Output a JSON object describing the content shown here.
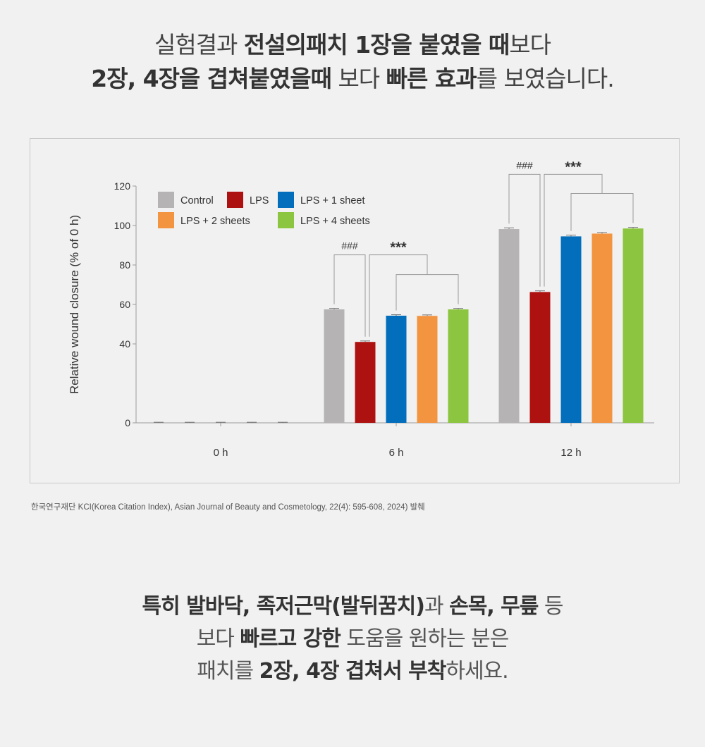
{
  "headline": {
    "line1_a": "실험결과 ",
    "line1_b": "전설의패치 1장을 붙였을 때",
    "line1_c": "보다",
    "line2_a": "2장, 4장을 겹쳐붙였을때",
    "line2_b": " 보다 ",
    "line2_c": "빠른 효과",
    "line2_d": "를 보였습니다."
  },
  "source": "한국연구재단 KCI(Korea Citation Index), Asian Journal of Beauty and Cosmetology, 22(4): 595-608, 2024) 발췌",
  "footer": {
    "line1_a": "특히 발바닥, 족저근막(발뒤꿈치)",
    "line1_b": "과 ",
    "line1_c": "손목, 무릎",
    "line1_d": " 등",
    "line2_a": "보다 ",
    "line2_b": "빠르고 강한",
    "line2_c": " 도움을 원하는 분은",
    "line3_a": "패치를 ",
    "line3_b": "2장, 4장 겹쳐서 부착",
    "line3_c": "하세요."
  },
  "chart_data": {
    "type": "bar",
    "ylabel": "Relative wound closure (% of 0 h)",
    "yticks": [
      0,
      40,
      60,
      80,
      100,
      120
    ],
    "ylim": [
      0,
      120
    ],
    "categories": [
      "0 h",
      "6 h",
      "12 h"
    ],
    "legend_position": "top-left",
    "series": [
      {
        "name": "Control",
        "color": "#b5b3b4",
        "values": [
          0,
          57.5,
          98.2
        ],
        "errors": [
          0.3,
          0.5,
          0.6
        ]
      },
      {
        "name": "LPS",
        "color": "#ae1210",
        "values": [
          0,
          41,
          66.3
        ],
        "errors": [
          0.3,
          0.5,
          0.6
        ]
      },
      {
        "name": "LPS + 1 sheet",
        "color": "#036ebc",
        "values": [
          0,
          54.3,
          94.5
        ],
        "errors": [
          0.3,
          0.5,
          0.6
        ]
      },
      {
        "name": "LPS + 2 sheets",
        "color": "#f39441",
        "values": [
          0,
          54.2,
          95.9
        ],
        "errors": [
          0.3,
          0.5,
          0.6
        ]
      },
      {
        "name": "LPS + 4 sheets",
        "color": "#8cc53f",
        "values": [
          0,
          57.5,
          98.5
        ],
        "errors": [
          0.3,
          0.5,
          0.6
        ]
      }
    ],
    "annotations": [
      {
        "category": "6 h",
        "text_hash": "###",
        "text_star": "***"
      },
      {
        "category": "12 h",
        "text_hash": "###",
        "text_star": "***"
      }
    ],
    "grid": false
  }
}
